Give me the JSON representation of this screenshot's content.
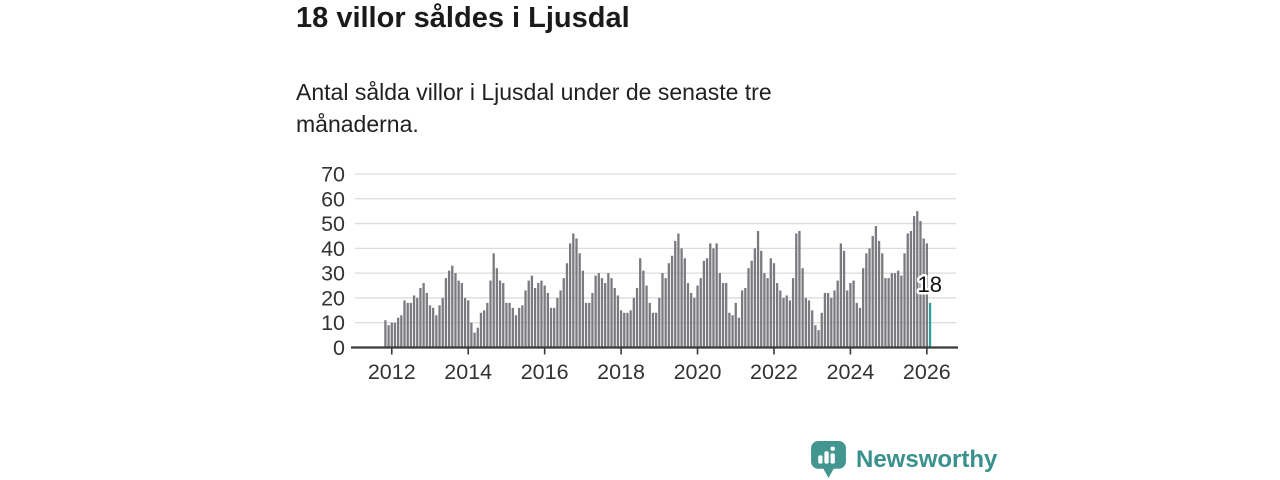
{
  "header": {
    "title": "18 villor såldes i Ljusdal",
    "subtitle": "Antal sålda villor i Ljusdal under de senaste tre månaderna."
  },
  "annotation": {
    "label": "18"
  },
  "branding": {
    "label": "Newsworthy",
    "icon": "bar-chart-bubble-icon"
  },
  "colors": {
    "bar": "#7b7b7f",
    "highlight": "#2aa09d",
    "axis": "#3a3a3a",
    "grid": "#dcdcdc",
    "tick_text": "#333333",
    "annotation_text": "#111111",
    "brand": "#38918c",
    "brand_icon": "#42968f"
  },
  "chart_data": {
    "type": "bar",
    "title": "18 villor såldes i Ljusdal",
    "subtitle": "Antal sålda villor i Ljusdal under de senaste tre månaderna.",
    "x_start_month": "2011-11",
    "x_end_month": "2026-02",
    "y_ticks": [
      0,
      10,
      20,
      30,
      40,
      50,
      60,
      70
    ],
    "x_tick_years": [
      2012,
      2014,
      2016,
      2018,
      2020,
      2022,
      2024,
      2026
    ],
    "ylim": [
      0,
      73
    ],
    "grid": true,
    "legend": false,
    "highlight_last_value": 18,
    "values": [
      11,
      9,
      10,
      10,
      12,
      13,
      19,
      18,
      18,
      21,
      20,
      24,
      26,
      22,
      17,
      16,
      13,
      17,
      20,
      28,
      31,
      33,
      30,
      27,
      26,
      20,
      19,
      10,
      6,
      8,
      14,
      15,
      18,
      27,
      38,
      32,
      27,
      26,
      18,
      18,
      16,
      13,
      16,
      17,
      23,
      27,
      29,
      24,
      26,
      27,
      25,
      22,
      16,
      16,
      20,
      23,
      28,
      34,
      42,
      46,
      44,
      38,
      31,
      18,
      18,
      22,
      29,
      30,
      28,
      26,
      30,
      28,
      24,
      21,
      15,
      14,
      14,
      15,
      20,
      24,
      36,
      31,
      25,
      18,
      14,
      14,
      20,
      30,
      28,
      34,
      37,
      43,
      46,
      40,
      36,
      26,
      22,
      20,
      25,
      28,
      35,
      36,
      42,
      40,
      42,
      30,
      26,
      26,
      14,
      13,
      18,
      12,
      23,
      24,
      32,
      35,
      40,
      47,
      39,
      30,
      28,
      36,
      34,
      26,
      23,
      20,
      21,
      19,
      28,
      46,
      47,
      32,
      20,
      19,
      15,
      9,
      7,
      14,
      22,
      22,
      20,
      23,
      27,
      42,
      39,
      23,
      26,
      27,
      18,
      16,
      32,
      38,
      40,
      45,
      49,
      43,
      38,
      28,
      28,
      30,
      30,
      31,
      29,
      38,
      46,
      47,
      53,
      55,
      51,
      44,
      42,
      18
    ]
  }
}
